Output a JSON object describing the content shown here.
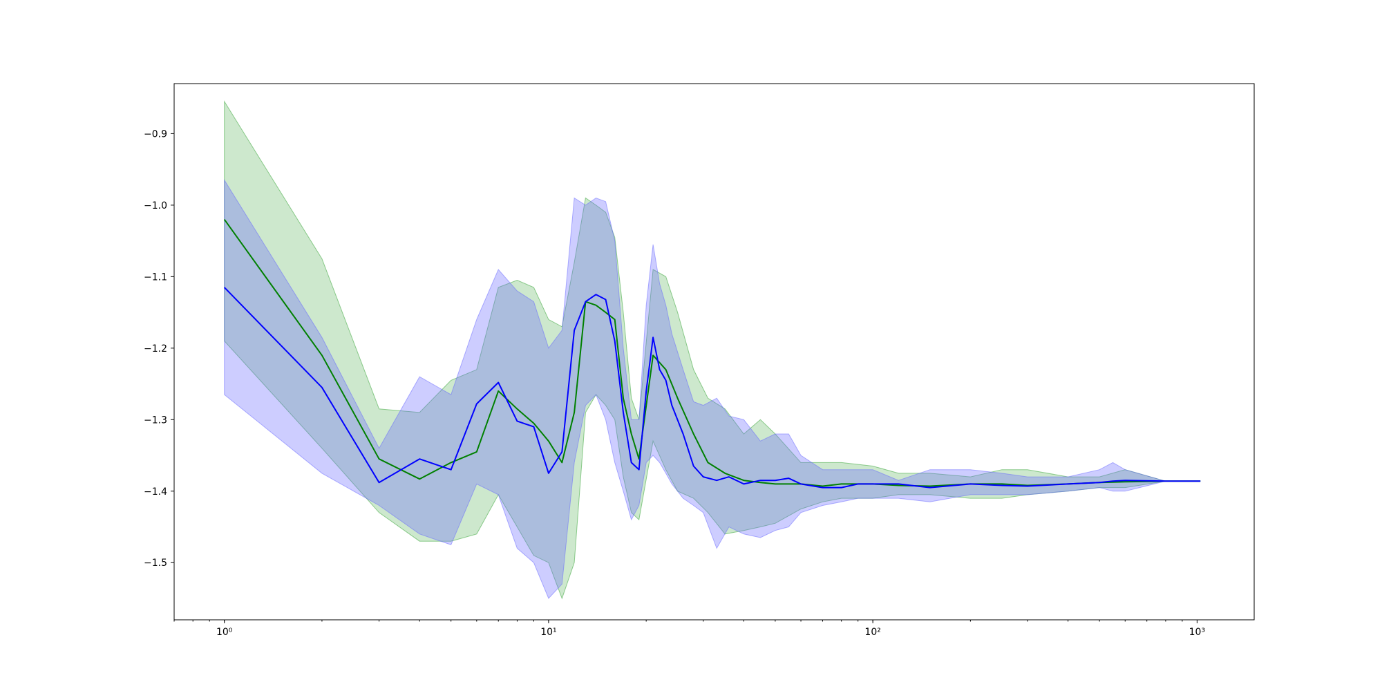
{
  "chart_data": {
    "type": "line",
    "title": "",
    "xlabel": "",
    "ylabel": "",
    "xscale": "log",
    "xlim": [
      0.7,
      1500
    ],
    "ylim": [
      -1.58,
      -0.83
    ],
    "grid": false,
    "legend": "none",
    "x_ticks": [
      {
        "value": 1,
        "label": "10⁰"
      },
      {
        "value": 10,
        "label": "10¹"
      },
      {
        "value": 100,
        "label": "10²"
      },
      {
        "value": 1000,
        "label": "10³"
      }
    ],
    "y_ticks": [
      {
        "value": -0.9,
        "label": "−0.9"
      },
      {
        "value": -1.0,
        "label": "−1.0"
      },
      {
        "value": -1.1,
        "label": "−1.1"
      },
      {
        "value": -1.2,
        "label": "−1.2"
      },
      {
        "value": -1.3,
        "label": "−1.3"
      },
      {
        "value": -1.4,
        "label": "−1.4"
      },
      {
        "value": -1.5,
        "label": "−1.5"
      }
    ],
    "series": [
      {
        "color": "#008000",
        "band_color": "#2ca02c",
        "band_opacity": 0.24,
        "x": [
          1,
          2,
          3,
          4,
          5,
          6,
          7,
          8,
          9,
          10,
          11,
          12,
          13,
          14,
          15,
          16,
          17,
          18,
          19,
          21,
          23,
          25,
          28,
          31,
          35,
          40,
          45,
          50,
          60,
          70,
          80,
          100,
          120,
          150,
          200,
          250,
          300,
          400,
          500,
          600,
          800,
          1024
        ],
        "y": [
          -1.02,
          -1.21,
          -1.355,
          -1.383,
          -1.36,
          -1.345,
          -1.26,
          -1.285,
          -1.305,
          -1.33,
          -1.36,
          -1.29,
          -1.135,
          -1.14,
          -1.15,
          -1.16,
          -1.27,
          -1.32,
          -1.355,
          -1.21,
          -1.23,
          -1.27,
          -1.32,
          -1.36,
          -1.375,
          -1.385,
          -1.388,
          -1.39,
          -1.39,
          -1.393,
          -1.39,
          -1.39,
          -1.392,
          -1.393,
          -1.39,
          -1.39,
          -1.392,
          -1.39,
          -1.388,
          -1.387,
          -1.386,
          -1.386
        ],
        "upper": [
          -0.855,
          -1.075,
          -1.285,
          -1.29,
          -1.245,
          -1.23,
          -1.115,
          -1.105,
          -1.115,
          -1.16,
          -1.17,
          -1.08,
          -0.99,
          -1.0,
          -1.01,
          -1.045,
          -1.15,
          -1.27,
          -1.3,
          -1.09,
          -1.1,
          -1.15,
          -1.23,
          -1.27,
          -1.285,
          -1.32,
          -1.3,
          -1.32,
          -1.36,
          -1.36,
          -1.36,
          -1.365,
          -1.375,
          -1.375,
          -1.38,
          -1.37,
          -1.37,
          -1.38,
          -1.38,
          -1.37,
          -1.386,
          -1.386
        ],
        "lower": [
          -1.19,
          -1.34,
          -1.43,
          -1.47,
          -1.47,
          -1.46,
          -1.405,
          -1.45,
          -1.49,
          -1.5,
          -1.55,
          -1.5,
          -1.29,
          -1.265,
          -1.28,
          -1.3,
          -1.38,
          -1.43,
          -1.44,
          -1.33,
          -1.37,
          -1.4,
          -1.41,
          -1.43,
          -1.46,
          -1.455,
          -1.45,
          -1.445,
          -1.425,
          -1.415,
          -1.41,
          -1.41,
          -1.405,
          -1.405,
          -1.41,
          -1.41,
          -1.405,
          -1.4,
          -1.395,
          -1.395,
          -1.386,
          -1.386
        ]
      },
      {
        "color": "#0000ff",
        "band_color": "#6666ff",
        "band_opacity": 0.33,
        "x": [
          1,
          2,
          3,
          4,
          5,
          6,
          7,
          8,
          9,
          10,
          11,
          12,
          13,
          14,
          15,
          16,
          17,
          18,
          19,
          20,
          21,
          22,
          23,
          24,
          26,
          28,
          30,
          33,
          36,
          40,
          45,
          50,
          55,
          60,
          70,
          80,
          90,
          100,
          120,
          150,
          200,
          250,
          300,
          400,
          500,
          550,
          600,
          800,
          1024
        ],
        "y": [
          -1.115,
          -1.255,
          -1.388,
          -1.355,
          -1.37,
          -1.278,
          -1.248,
          -1.302,
          -1.31,
          -1.375,
          -1.345,
          -1.175,
          -1.135,
          -1.125,
          -1.132,
          -1.19,
          -1.29,
          -1.36,
          -1.37,
          -1.26,
          -1.185,
          -1.23,
          -1.245,
          -1.28,
          -1.32,
          -1.365,
          -1.38,
          -1.385,
          -1.38,
          -1.39,
          -1.385,
          -1.385,
          -1.382,
          -1.39,
          -1.395,
          -1.395,
          -1.39,
          -1.39,
          -1.39,
          -1.395,
          -1.39,
          -1.392,
          -1.393,
          -1.39,
          -1.388,
          -1.386,
          -1.385,
          -1.386,
          -1.386
        ],
        "upper": [
          -0.965,
          -1.185,
          -1.34,
          -1.24,
          -1.265,
          -1.16,
          -1.09,
          -1.12,
          -1.135,
          -1.2,
          -1.175,
          -0.99,
          -1.0,
          -0.99,
          -0.995,
          -1.05,
          -1.2,
          -1.3,
          -1.3,
          -1.14,
          -1.055,
          -1.11,
          -1.14,
          -1.18,
          -1.23,
          -1.275,
          -1.28,
          -1.27,
          -1.295,
          -1.3,
          -1.33,
          -1.32,
          -1.32,
          -1.35,
          -1.37,
          -1.37,
          -1.37,
          -1.37,
          -1.385,
          -1.37,
          -1.37,
          -1.375,
          -1.38,
          -1.38,
          -1.37,
          -1.36,
          -1.37,
          -1.386,
          -1.386
        ],
        "lower": [
          -1.265,
          -1.375,
          -1.42,
          -1.46,
          -1.475,
          -1.39,
          -1.405,
          -1.48,
          -1.5,
          -1.55,
          -1.53,
          -1.36,
          -1.28,
          -1.265,
          -1.3,
          -1.36,
          -1.4,
          -1.44,
          -1.42,
          -1.36,
          -1.35,
          -1.36,
          -1.375,
          -1.39,
          -1.41,
          -1.42,
          -1.43,
          -1.48,
          -1.45,
          -1.46,
          -1.465,
          -1.455,
          -1.45,
          -1.43,
          -1.42,
          -1.415,
          -1.41,
          -1.41,
          -1.41,
          -1.415,
          -1.405,
          -1.405,
          -1.405,
          -1.4,
          -1.395,
          -1.4,
          -1.4,
          -1.386,
          -1.386
        ]
      }
    ]
  }
}
